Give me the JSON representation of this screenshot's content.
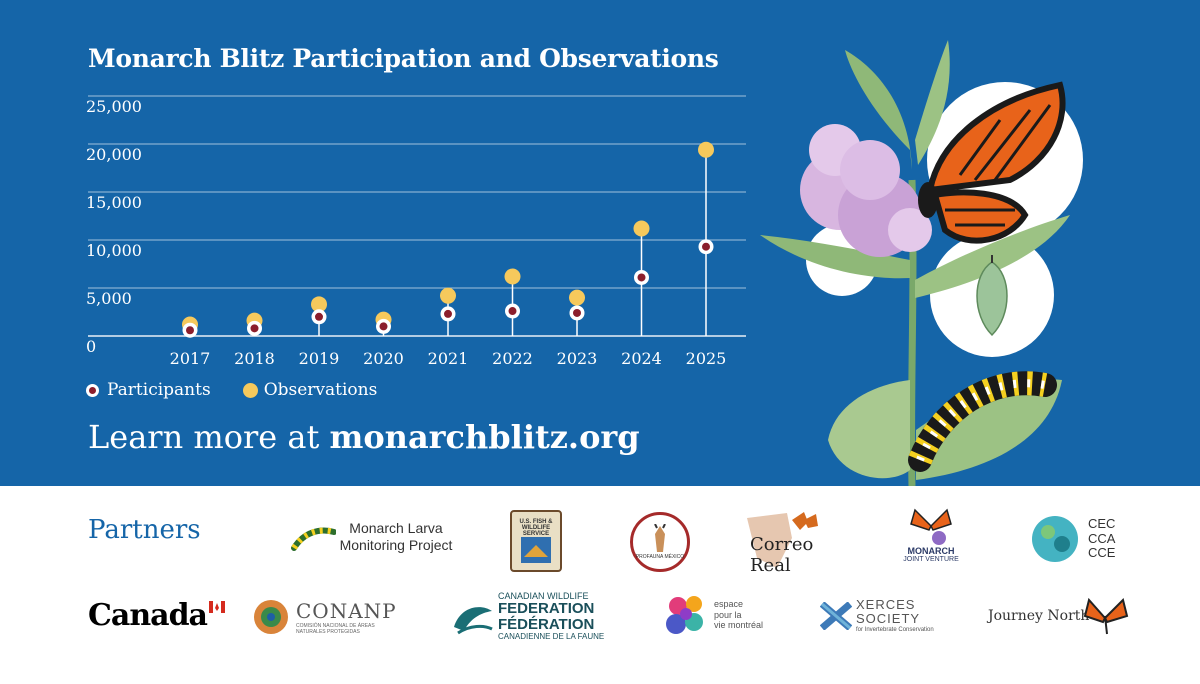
{
  "chart_data": {
    "type": "scatter",
    "title": "Monarch Blitz Participation and Observations",
    "categories": [
      "2017",
      "2018",
      "2019",
      "2020",
      "2021",
      "2022",
      "2023",
      "2024",
      "2025"
    ],
    "series": [
      {
        "name": "Participants",
        "values": [
          600,
          800,
          2000,
          1000,
          2300,
          2600,
          2400,
          6100,
          9300
        ],
        "color": "#8b1e2c"
      },
      {
        "name": "Observations",
        "values": [
          1200,
          1600,
          3300,
          1700,
          4200,
          6200,
          4000,
          11200,
          19400
        ],
        "color": "#f6c95c"
      }
    ],
    "yticks": [
      "25,000",
      "20,000",
      "15,000",
      "10,000",
      "5,000",
      "0"
    ],
    "ylim": [
      0,
      25000
    ],
    "xlabel": "",
    "ylabel": ""
  },
  "cta": {
    "prefix": "Learn more at ",
    "url": "monarchblitz.org"
  },
  "partners_label": "Partners",
  "logos": {
    "mlmp": "Monarch Larva Monitoring Project",
    "usfws": "U.S. FISH & WILDLIFE SERVICE",
    "profauna": "PROFAUNA MÉXICO",
    "correo": "Correo Real",
    "mjv_1": "MONARCH",
    "mjv_2": "JOINT VENTURE",
    "cec_1": "CEC",
    "cec_2": "CCA",
    "cec_3": "CCE",
    "canada": "Canada",
    "conanp": "CONANP",
    "conanp_sub": "COMISIÓN NACIONAL DE ÁREAS NATURALES PROTEGIDAS",
    "cwf_1": "CANADIAN WILDLIFE",
    "cwf_2": "FEDERATION",
    "cwf_3": "FÉDÉRATION",
    "cwf_4": "CANADIENNE DE LA FAUNE",
    "epv_1": "espace",
    "epv_2": "pour la",
    "epv_3": "vie montréal",
    "xerces_1": "XERCES",
    "xerces_2": "SOCIETY",
    "xerces_3": "for Invertebrate Conservation",
    "journey": "Journey North"
  },
  "colors": {
    "background": "#1565a8",
    "participants": "#8b1e2c",
    "observations": "#f6c95c"
  }
}
